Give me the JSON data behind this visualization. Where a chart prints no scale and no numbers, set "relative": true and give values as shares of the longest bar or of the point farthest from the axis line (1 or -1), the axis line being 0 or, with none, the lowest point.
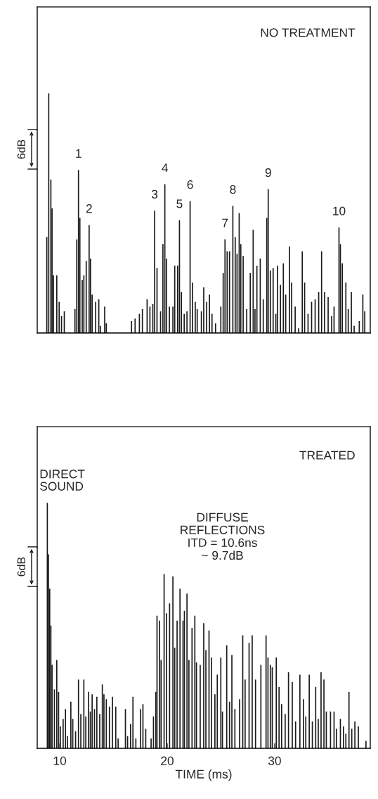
{
  "chart_data": [
    {
      "type": "bar",
      "title": "NO TREATMENT",
      "relative": true,
      "xlim": [
        7.9,
        38.9
      ],
      "tick_labels": false,
      "annotations": [
        "6dB",
        {
          "text": "1",
          "x": 11.74,
          "y": 0.68
        },
        {
          "text": "2",
          "x": 12.73,
          "y": 0.45
        },
        {
          "text": "3",
          "x": 18.83,
          "y": 0.51
        },
        {
          "text": "4",
          "x": 19.78,
          "y": 0.62
        },
        {
          "text": "5",
          "x": 21.14,
          "y": 0.47
        },
        {
          "text": "6",
          "x": 22.13,
          "y": 0.55
        },
        {
          "text": "7",
          "x": 25.38,
          "y": 0.39
        },
        {
          "text": "8",
          "x": 26.11,
          "y": 0.53
        },
        {
          "text": "9",
          "x": 29.4,
          "y": 0.6
        },
        {
          "text": "10",
          "x": 35.99,
          "y": 0.44
        }
      ],
      "series": [
        {
          "color": "#1a1a1a",
          "x": [
            8.79,
            8.97,
            9.17,
            9.28,
            9.41,
            9.72,
            9.94,
            10.16,
            10.42,
            11.41,
            11.58,
            11.74,
            11.87,
            12.09,
            12.24,
            12.46,
            12.73,
            12.86,
            13.01,
            13.34,
            13.63,
            13.78,
            14.18,
            14.33,
            16.68,
            17.01,
            17.41,
            17.69,
            18.13,
            18.39,
            18.66,
            18.83,
            19.05,
            19.38,
            19.6,
            19.78,
            19.93,
            20.2,
            20.53,
            20.7,
            20.97,
            21.14,
            21.32,
            21.58,
            21.84,
            22.13,
            22.35,
            22.61,
            22.79,
            23.18,
            23.4,
            23.67,
            23.93,
            24.17,
            24.5,
            24.99,
            25.21,
            25.38,
            25.58,
            25.8,
            26.11,
            26.33,
            26.5,
            26.7,
            26.85,
            27.07,
            27.4,
            27.73,
            28.0,
            28.17,
            28.35,
            28.66,
            28.94,
            29.27,
            29.4,
            29.6,
            29.86,
            30.11,
            30.26,
            30.54,
            30.81,
            31.03,
            31.38,
            31.58,
            31.91,
            32.24,
            32.57,
            32.79,
            33.11,
            33.44,
            33.77,
            34.1,
            34.37,
            34.65,
            34.98,
            35.31,
            35.53,
            35.99,
            36.12,
            36.3,
            36.63,
            36.85,
            37.14,
            37.4,
            37.88,
            38.21,
            38.39
          ],
          "values": [
            0.4,
            1.0,
            0.64,
            0.52,
            0.24,
            0.24,
            0.13,
            0.07,
            0.09,
            0.1,
            0.39,
            0.68,
            0.48,
            0.22,
            0.24,
            0.3,
            0.45,
            0.31,
            0.16,
            0.13,
            0.14,
            0.03,
            0.11,
            0.04,
            0.05,
            0.06,
            0.08,
            0.1,
            0.14,
            0.11,
            0.12,
            0.51,
            0.27,
            0.09,
            0.37,
            0.62,
            0.31,
            0.11,
            0.11,
            0.28,
            0.28,
            0.47,
            0.17,
            0.08,
            0.09,
            0.55,
            0.21,
            0.13,
            0.1,
            0.09,
            0.19,
            0.13,
            0.16,
            0.08,
            0.04,
            0.11,
            0.25,
            0.39,
            0.34,
            0.34,
            0.53,
            0.4,
            0.33,
            0.5,
            0.37,
            0.32,
            0.1,
            0.25,
            0.43,
            0.1,
            0.28,
            0.31,
            0.14,
            0.48,
            0.6,
            0.26,
            0.27,
            0.08,
            0.28,
            0.2,
            0.29,
            0.16,
            0.36,
            0.21,
            0.11,
            0.02,
            0.34,
            0.21,
            0.08,
            0.13,
            0.14,
            0.17,
            0.34,
            0.17,
            0.15,
            0.07,
            0.11,
            0.44,
            0.37,
            0.29,
            0.21,
            0.1,
            0.17,
            0.03,
            0.05,
            0.16,
            0.09
          ]
        }
      ]
    },
    {
      "type": "bar",
      "title": "TREATED",
      "relative": true,
      "xlim": [
        7.9,
        38.9
      ],
      "xticks": [
        10,
        20,
        30
      ],
      "xlabel": "TIME (ms)",
      "tick_labels": "x",
      "annotations": [
        {
          "text": "DIRECT\nSOUND",
          "x": 8.84,
          "y": 1.0
        },
        "DIFFUSE\nREFLECTIONS\nITD = 10.6ns\n~ 9.7dB",
        "6dB"
      ],
      "series": [
        {
          "color": "#1a1a1a",
          "x": [
            8.84,
            8.95,
            9.06,
            9.17,
            9.28,
            9.5,
            9.72,
            9.89,
            10.05,
            10.31,
            10.53,
            10.71,
            11.03,
            11.21,
            11.47,
            11.74,
            11.96,
            12.24,
            12.42,
            12.68,
            12.84,
            13.01,
            13.23,
            13.45,
            13.72,
            13.96,
            14.11,
            14.33,
            14.62,
            14.9,
            15.21,
            15.43,
            16.11,
            16.31,
            16.59,
            16.81,
            17.08,
            17.52,
            17.74,
            18.0,
            18.5,
            18.72,
            18.94,
            19.05,
            19.27,
            19.43,
            19.71,
            19.93,
            20.22,
            20.53,
            20.7,
            20.92,
            21.19,
            21.47,
            21.6,
            21.84,
            22.02,
            22.31,
            22.57,
            22.72,
            23.07,
            23.4,
            23.6,
            23.89,
            24.11,
            24.44,
            24.66,
            24.99,
            25.14,
            25.54,
            25.8,
            26.02,
            26.3,
            26.74,
            27.03,
            27.25,
            27.62,
            27.91,
            28.22,
            28.72,
            29.2,
            29.38,
            29.6,
            29.78,
            30.15,
            30.41,
            30.65,
            30.98,
            31.29,
            31.64,
            31.95,
            32.35,
            32.68,
            32.9,
            33.22,
            33.51,
            33.82,
            34.06,
            34.32,
            34.59,
            34.81,
            35.2,
            35.53,
            35.75,
            36.12,
            36.41,
            36.63,
            36.92,
            37.18,
            37.47,
            37.79,
            38.5
          ],
          "values": [
            1.0,
            0.79,
            0.65,
            0.5,
            0.34,
            0.24,
            0.36,
            0.23,
            0.09,
            0.12,
            0.16,
            0.05,
            0.19,
            0.12,
            0.07,
            0.28,
            0.14,
            0.28,
            0.13,
            0.23,
            0.15,
            0.22,
            0.16,
            0.21,
            0.14,
            0.26,
            0.22,
            0.2,
            0.17,
            0.21,
            0.17,
            0.04,
            0.16,
            0.05,
            0.1,
            0.21,
            0.04,
            0.16,
            0.18,
            0.08,
            0.04,
            0.13,
            0.23,
            0.54,
            0.52,
            0.36,
            0.71,
            0.55,
            0.59,
            0.7,
            0.41,
            0.52,
            0.65,
            0.52,
            0.56,
            0.63,
            0.36,
            0.49,
            0.54,
            0.35,
            0.34,
            0.51,
            0.4,
            0.48,
            0.37,
            0.22,
            0.3,
            0.37,
            0.15,
            0.42,
            0.19,
            0.38,
            0.16,
            0.2,
            0.46,
            0.28,
            0.43,
            0.46,
            0.28,
            0.34,
            0.46,
            0.37,
            0.34,
            0.33,
            0.37,
            0.25,
            0.18,
            0.14,
            0.31,
            0.27,
            0.11,
            0.3,
            0.2,
            0.13,
            0.3,
            0.11,
            0.25,
            0.12,
            0.31,
            0.28,
            0.15,
            0.15,
            0.15,
            0.08,
            0.12,
            0.09,
            0.06,
            0.23,
            0.08,
            0.11,
            0.09,
            0.03
          ]
        }
      ]
    }
  ]
}
